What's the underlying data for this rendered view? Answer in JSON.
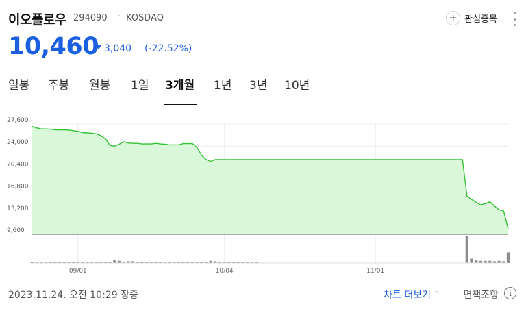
{
  "stock": {
    "name": "이오플로우",
    "code": "294090",
    "separator": "·",
    "market": "KOSDAQ",
    "price": "10,460",
    "change_value": "3,040",
    "change_percent": "(-22.52%)",
    "change_direction": "down",
    "color_down": "#1a5fe0"
  },
  "watchlist": {
    "label": "관심종목",
    "icon": "plus-circle-icon"
  },
  "tabs": [
    {
      "label": "일봉",
      "active": false
    },
    {
      "label": "주봉",
      "active": false
    },
    {
      "label": "월봉",
      "active": false
    },
    {
      "label": "1일",
      "active": false
    },
    {
      "label": "3개월",
      "active": true
    },
    {
      "label": "1년",
      "active": false
    },
    {
      "label": "3년",
      "active": false
    },
    {
      "label": "10년",
      "active": false
    }
  ],
  "chart_data": {
    "type": "area",
    "title": "",
    "line_color": "#33c233",
    "fill_color": "#d9f7d9",
    "volume_color": "#8c8c8c",
    "y_ticks": [
      "27,600",
      "24,000",
      "20,400",
      "16,800",
      "13,200",
      "9,600"
    ],
    "y_tick_values": [
      27600,
      24000,
      20400,
      16800,
      13200,
      9600
    ],
    "ylim": [
      9600,
      27600
    ],
    "x_ticks": [
      {
        "label": "09/01",
        "index": 10
      },
      {
        "label": "10/04",
        "index": 42
      },
      {
        "label": "11/01",
        "index": 75
      }
    ],
    "grid": true,
    "price_series": [
      27200,
      26950,
      26800,
      26800,
      26750,
      26650,
      26650,
      26650,
      26600,
      26500,
      26400,
      26200,
      26150,
      26100,
      26000,
      25700,
      25200,
      24100,
      24000,
      24300,
      24700,
      24500,
      24450,
      24450,
      24350,
      24350,
      24350,
      24450,
      24350,
      24300,
      24200,
      24200,
      24200,
      24400,
      24400,
      24400,
      23800,
      22500,
      21800,
      21500,
      21800,
      21800,
      21800,
      21800,
      21800,
      21800,
      21800,
      21800,
      21800,
      21800,
      21800,
      21800,
      21800,
      21800,
      21800,
      21800,
      21800,
      21800,
      21800,
      21800,
      21800,
      21800,
      21800,
      21800,
      21800,
      21800,
      21800,
      21800,
      21800,
      21800,
      21800,
      21800,
      21800,
      21800,
      21800,
      21800,
      21800,
      21800,
      21800,
      21800,
      21800,
      21800,
      21800,
      21800,
      21800,
      21800,
      21800,
      21800,
      21800,
      21800,
      21800,
      21800,
      21800,
      21800,
      21800,
      15800,
      15300,
      14800,
      14400,
      14600,
      14900,
      14200,
      13600,
      13400,
      10460
    ],
    "volume_series": [
      2,
      2,
      2,
      2,
      2,
      2,
      2,
      2,
      2,
      2,
      2,
      2,
      2,
      2,
      2,
      2,
      2,
      2,
      6,
      5,
      3,
      4,
      4,
      3,
      3,
      3,
      3,
      2,
      2,
      2,
      2,
      2,
      2,
      2,
      2,
      2,
      2,
      2,
      3,
      5,
      4,
      2,
      2,
      2,
      2,
      2,
      2,
      2,
      2,
      2,
      0,
      0,
      0,
      0,
      0,
      0,
      0,
      0,
      0,
      0,
      0,
      0,
      0,
      0,
      0,
      0,
      0,
      0,
      0,
      0,
      0,
      0,
      0,
      0,
      0,
      0,
      0,
      0,
      0,
      0,
      0,
      0,
      0,
      0,
      0,
      0,
      0,
      0,
      0,
      0,
      0,
      0,
      0,
      0,
      0,
      60,
      10,
      6,
      5,
      5,
      5,
      4,
      5,
      4,
      24
    ]
  },
  "footer": {
    "timestamp": "2023.11.24. 오전 10:29 장중",
    "more_chart": "차트 더보기",
    "separator": "·",
    "disclaimer": "면책조항",
    "info_icon": "info-icon",
    "info_glyph": "i"
  }
}
